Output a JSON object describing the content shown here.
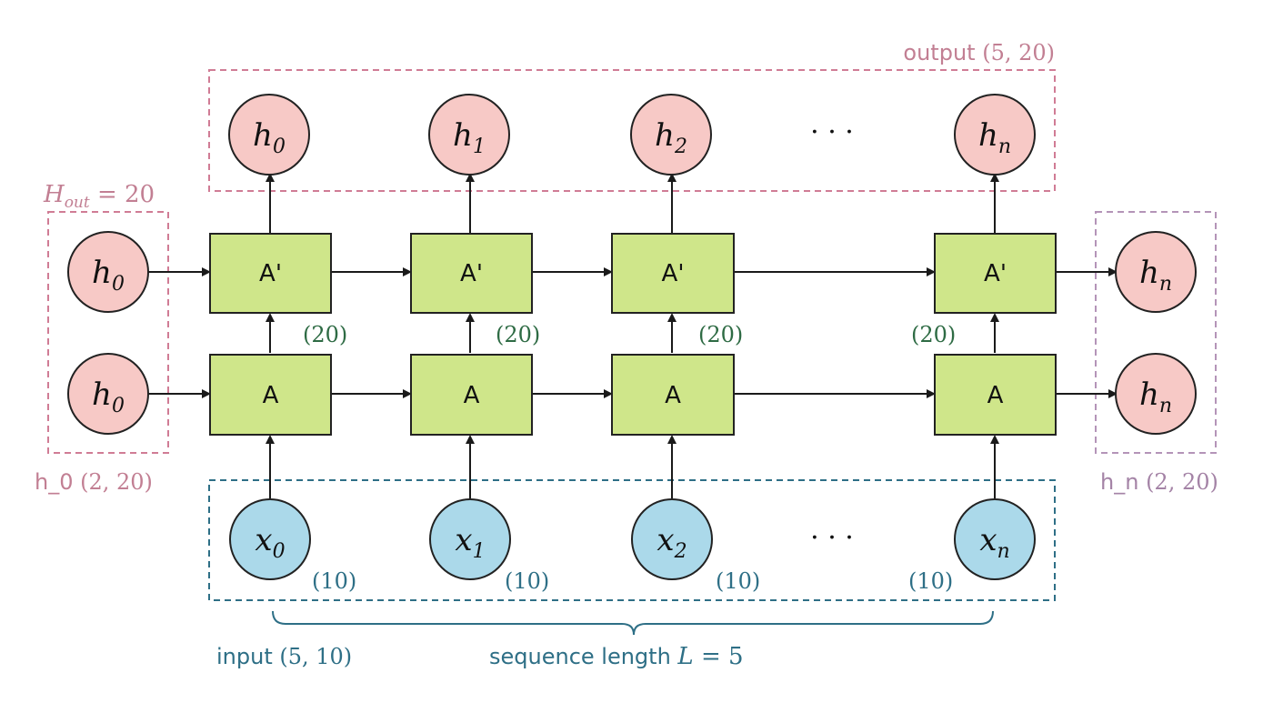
{
  "colors": {
    "cell_fill": "#cfe68a",
    "cell_stroke": "#222222",
    "hidden_fill": "#f7c9c6",
    "input_fill": "#abd9ea",
    "output_box": "#d07c95",
    "h0_box": "#d07c95",
    "hn_box": "#b494b8",
    "input_box": "#2e6f86",
    "green_text": "#2e6b44",
    "blue_text": "#2e6f86"
  },
  "cells": {
    "top_label": "A'",
    "bottom_label": "A"
  },
  "outputs": [
    {
      "base": "h",
      "sub": "0"
    },
    {
      "base": "h",
      "sub": "1"
    },
    {
      "base": "h",
      "sub": "2"
    },
    {
      "base": "h",
      "sub": "n"
    }
  ],
  "inputs": [
    {
      "base": "x",
      "sub": "0"
    },
    {
      "base": "x",
      "sub": "1"
    },
    {
      "base": "x",
      "sub": "2"
    },
    {
      "base": "x",
      "sub": "n"
    }
  ],
  "initial_hidden": [
    {
      "base": "h",
      "sub": "0"
    },
    {
      "base": "h",
      "sub": "0"
    }
  ],
  "final_hidden": [
    {
      "base": "h",
      "sub": "n"
    },
    {
      "base": "h",
      "sub": "n"
    }
  ],
  "ellipsis": "· · ·",
  "hidden_dims": [
    "(20)",
    "(20)",
    "(20)",
    "(20)"
  ],
  "input_dims": [
    "(10)",
    "(10)",
    "(10)",
    "(10)"
  ],
  "labels": {
    "output": {
      "text": "output ",
      "dims": "(5, 20)"
    },
    "h_out": {
      "base": "H",
      "sub": "out",
      "rest": " = 20"
    },
    "h0": {
      "text": "h_0 ",
      "dims": "(2, 20)"
    },
    "hn": {
      "text": "h_n ",
      "dims": "(2, 20)"
    },
    "input": {
      "text": "input ",
      "dims": "(5, 10)"
    },
    "sequence": {
      "text": "sequence length ",
      "var": "L",
      "rest": " = 5"
    }
  }
}
